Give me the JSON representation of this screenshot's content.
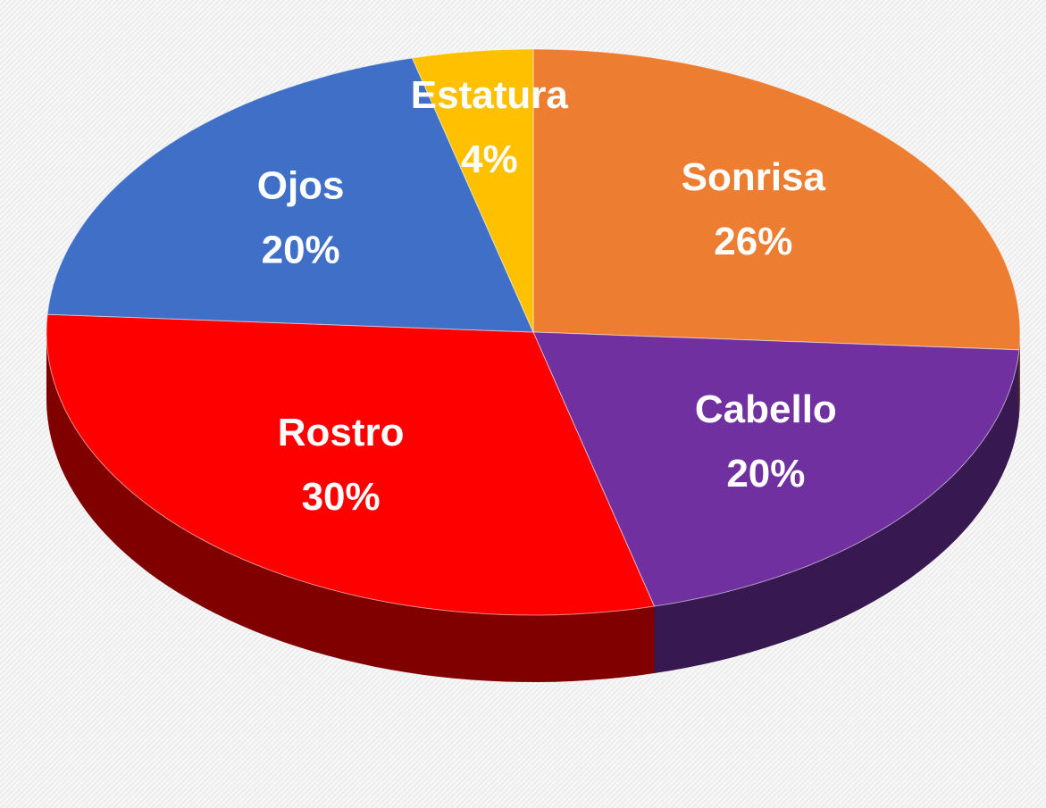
{
  "chart_data": {
    "type": "pie",
    "categories": [
      "Sonrisa",
      "Cabello",
      "Rostro",
      "Ojos",
      "Estatura"
    ],
    "values": [
      26,
      20,
      30,
      20,
      4
    ],
    "value_labels": [
      "26%",
      "20%",
      "30%",
      "20%",
      "4%"
    ],
    "colors": [
      "#ed7d31",
      "#7030a0",
      "#ff0000",
      "#3f6fc6",
      "#ffc000"
    ],
    "three_d": true
  }
}
